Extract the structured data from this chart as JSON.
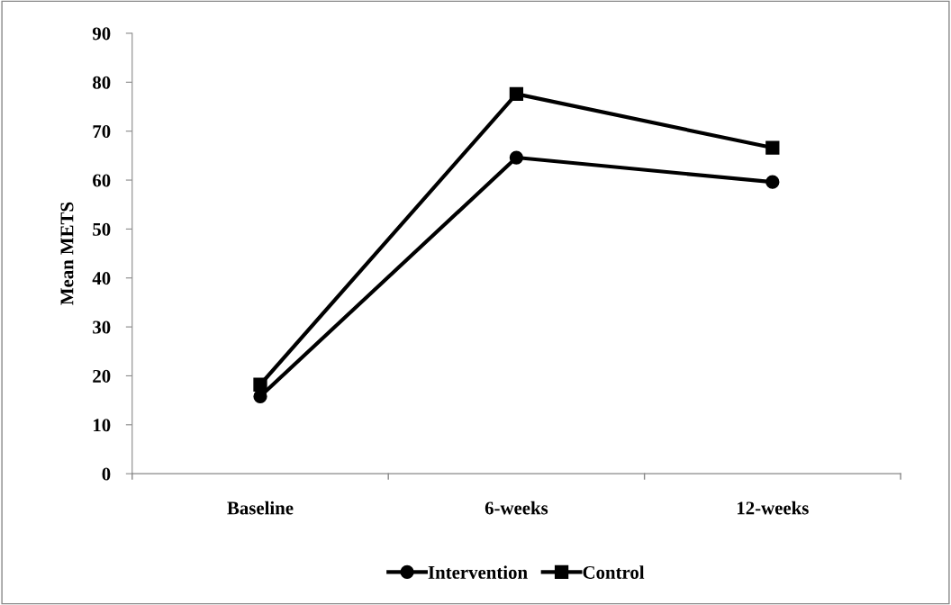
{
  "chart_data": {
    "type": "line",
    "ylabel": "Mean METS",
    "categories": [
      "Baseline",
      "6-weeks",
      "12-weeks"
    ],
    "series": [
      {
        "name": "Intervention",
        "color": "#000000",
        "marker": "circle",
        "values": [
          15.8,
          64.6,
          59.6
        ]
      },
      {
        "name": "Control",
        "color": "#000000",
        "marker": "square",
        "values": [
          18.2,
          77.6,
          66.6
        ]
      }
    ],
    "ylim": [
      0,
      90
    ],
    "yticks": [
      0,
      10,
      20,
      30,
      40,
      50,
      60,
      70,
      80,
      90
    ],
    "grid": false,
    "legend": "bottom",
    "line_style": "solid"
  }
}
